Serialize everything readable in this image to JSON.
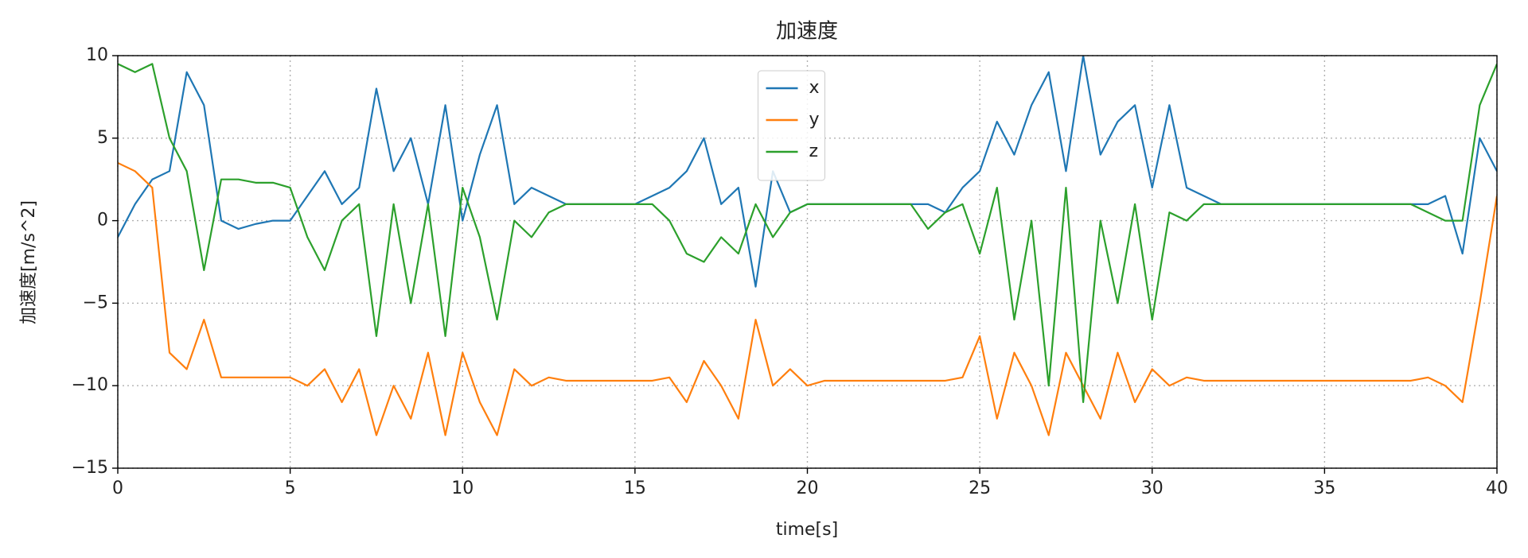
{
  "chart_data": {
    "type": "line",
    "title": "加速度",
    "xlabel": "time[s]",
    "ylabel": "加速度[m/s^2]",
    "x": [
      0,
      0.5,
      1,
      1.5,
      2,
      2.5,
      3,
      3.5,
      4,
      4.5,
      5,
      5.5,
      6,
      6.5,
      7,
      7.5,
      8,
      8.5,
      9,
      9.5,
      10,
      10.5,
      11,
      11.5,
      12,
      12.5,
      13,
      13.5,
      14,
      14.5,
      15,
      15.5,
      16,
      16.5,
      17,
      17.5,
      18,
      18.5,
      19,
      19.5,
      20,
      20.5,
      21,
      21.5,
      22,
      22.5,
      23,
      23.5,
      24,
      24.5,
      25,
      25.5,
      26,
      26.5,
      27,
      27.5,
      28,
      28.5,
      29,
      29.5,
      30,
      30.5,
      31,
      31.5,
      32,
      32.5,
      33,
      33.5,
      34,
      34.5,
      35,
      35.5,
      36,
      36.5,
      37,
      37.5,
      38,
      38.5,
      39,
      39.5,
      40
    ],
    "series": [
      {
        "name": "x",
        "color": "#1f77b4",
        "values": [
          -1,
          1,
          2.5,
          3,
          9,
          7,
          0,
          -0.5,
          -0.2,
          0,
          0,
          1.5,
          3,
          1,
          2,
          8,
          3,
          5,
          1,
          7,
          0,
          4,
          7,
          1,
          2,
          1.5,
          1,
          1,
          1,
          1,
          1,
          1.5,
          2,
          3,
          5,
          1,
          2,
          -4,
          3,
          0.5,
          1,
          1,
          1,
          1,
          1,
          1,
          1,
          1,
          0.5,
          2,
          3,
          6,
          4,
          7,
          9,
          3,
          10,
          4,
          6,
          7,
          2,
          7,
          2,
          1.5,
          1,
          1,
          1,
          1,
          1,
          1,
          1,
          1,
          1,
          1,
          1,
          1,
          1,
          1.5,
          -2,
          5,
          3
        ]
      },
      {
        "name": "y",
        "color": "#ff7f0e",
        "values": [
          3.5,
          3,
          2,
          -8,
          -9,
          -6,
          -9.5,
          -9.5,
          -9.5,
          -9.5,
          -9.5,
          -10,
          -9,
          -11,
          -9,
          -13,
          -10,
          -12,
          -8,
          -13,
          -8,
          -11,
          -13,
          -9,
          -10,
          -9.5,
          -9.7,
          -9.7,
          -9.7,
          -9.7,
          -9.7,
          -9.7,
          -9.5,
          -11,
          -8.5,
          -10,
          -12,
          -6,
          -10,
          -9,
          -10,
          -9.7,
          -9.7,
          -9.7,
          -9.7,
          -9.7,
          -9.7,
          -9.7,
          -9.7,
          -9.5,
          -7,
          -12,
          -8,
          -10,
          -13,
          -8,
          -10,
          -12,
          -8,
          -11,
          -9,
          -10,
          -9.5,
          -9.7,
          -9.7,
          -9.7,
          -9.7,
          -9.7,
          -9.7,
          -9.7,
          -9.7,
          -9.7,
          -9.7,
          -9.7,
          -9.7,
          -9.7,
          -9.5,
          -10,
          -11,
          -5,
          1.5
        ]
      },
      {
        "name": "z",
        "color": "#2ca02c",
        "values": [
          9.5,
          9,
          9.5,
          5,
          3,
          -3,
          2.5,
          2.5,
          2.3,
          2.3,
          2,
          -1,
          -3,
          0,
          1,
          -7,
          1,
          -5,
          1,
          -7,
          2,
          -1,
          -6,
          0,
          -1,
          0.5,
          1,
          1,
          1,
          1,
          1,
          1,
          0,
          -2,
          -2.5,
          -1,
          -2,
          1,
          -1,
          0.5,
          1,
          1,
          1,
          1,
          1,
          1,
          1,
          -0.5,
          0.5,
          1,
          -2,
          2,
          -6,
          0,
          -10,
          2,
          -11,
          0,
          -5,
          1,
          -6,
          0.5,
          0,
          1,
          1,
          1,
          1,
          1,
          1,
          1,
          1,
          1,
          1,
          1,
          1,
          1,
          0.5,
          0,
          0,
          7,
          9.5
        ]
      }
    ],
    "xlim": [
      0,
      40
    ],
    "xticks": [
      0,
      5,
      10,
      15,
      20,
      25,
      30,
      35,
      40
    ],
    "ylim": [
      -15,
      10
    ],
    "yticks": [
      {
        "value": -15,
        "label": "−15"
      },
      {
        "value": -10,
        "label": "−10"
      },
      {
        "value": -5,
        "label": "−5"
      },
      0,
      5,
      10
    ],
    "grid": true,
    "legend": "upper center"
  }
}
